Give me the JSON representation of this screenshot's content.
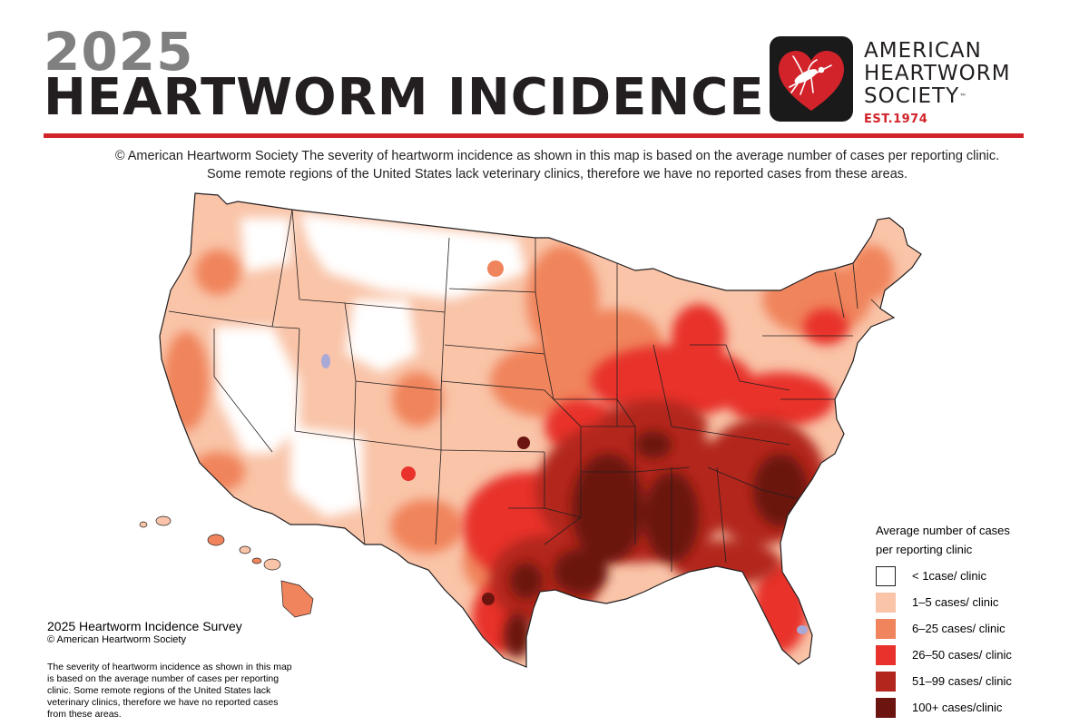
{
  "header": {
    "year": "2025",
    "title": "HEARTWORM INCIDENCE",
    "subtitle_brand": "© American Heartworm Society",
    "subtitle_line1": "The severity of heartworm incidence as shown in this map is based on the average number of cases per reporting clinic.",
    "subtitle_line2": "Some remote regions of the United States lack veterinary clinics, therefore we have no reported cases from these areas."
  },
  "logo": {
    "line1": "AMERICAN",
    "line2": "HEARTWORM",
    "line3": "SOCIETY",
    "trademark": "™",
    "est": "EST.1974",
    "icon": "heart-mosquito-icon",
    "accent_color": "#d2232a"
  },
  "survey": {
    "title": "2025 Heartworm Incidence Survey",
    "copyright": "© American Heartworm Society",
    "description": "The severity of heartworm incidence as shown in this map is based on the average number of cases per reporting clinic.  Some remote regions of the United States lack veterinary clinics, therefore we have no reported cases from these areas."
  },
  "legend": {
    "title_line1": "Average number of cases",
    "title_line2": "per reporting clinic",
    "items": [
      {
        "label": "< 1case/ clinic",
        "color": "#ffffff"
      },
      {
        "label": "1–5 cases/ clinic",
        "color": "#f9c4a8"
      },
      {
        "label": "6–25  cases/ clinic",
        "color": "#f0845c"
      },
      {
        "label": "26–50  cases/ clinic",
        "color": "#e8322b"
      },
      {
        "label": "51–99 cases/ clinic",
        "color": "#b3261e"
      },
      {
        "label": "100+ cases/clinic",
        "color": "#6b1410"
      }
    ]
  }
}
